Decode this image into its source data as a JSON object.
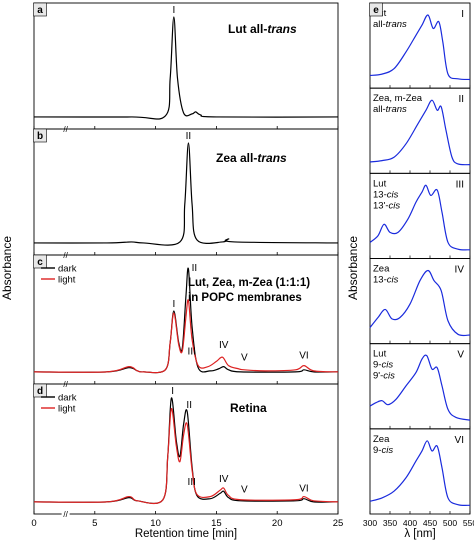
{
  "chart_data": [
    {
      "panel": "a",
      "type": "line",
      "title": "Lut all-trans",
      "title_base": "Lut all-",
      "title_italic": "trans",
      "xlim": [
        0,
        25
      ],
      "peaks": [
        {
          "label": "I",
          "x": 11.5,
          "y": 1.0
        }
      ],
      "series": [
        {
          "color": "#000000",
          "points": [
            [
              0,
              0.02
            ],
            [
              8,
              0.02
            ],
            [
              10.8,
              0.03
            ],
            [
              11.2,
              0.4
            ],
            [
              11.5,
              1.0
            ],
            [
              11.8,
              0.4
            ],
            [
              12.3,
              0.06
            ],
            [
              13.0,
              0.05
            ],
            [
              13.3,
              0.07
            ],
            [
              13.7,
              0.04
            ],
            [
              15,
              0.02
            ],
            [
              25,
              0.02
            ]
          ]
        }
      ]
    },
    {
      "panel": "b",
      "type": "line",
      "title": "Zea all-trans",
      "title_base": "Zea all-",
      "title_italic": "trans",
      "xlim": [
        0,
        25
      ],
      "peaks": [
        {
          "label": "II",
          "x": 12.7,
          "y": 1.0
        }
      ],
      "series": [
        {
          "color": "#000000",
          "points": [
            [
              0,
              0.02
            ],
            [
              6,
              0.02
            ],
            [
              8,
              0.03
            ],
            [
              9,
              0.02
            ],
            [
              12.0,
              0.03
            ],
            [
              12.4,
              0.4
            ],
            [
              12.7,
              1.0
            ],
            [
              13.0,
              0.4
            ],
            [
              13.4,
              0.05
            ],
            [
              15.5,
              0.03
            ],
            [
              16.0,
              0.06
            ],
            [
              16.5,
              0.03
            ],
            [
              25,
              0.02
            ]
          ]
        }
      ]
    },
    {
      "panel": "c",
      "type": "line",
      "title_lines": [
        "Lut, Zea, m-Zea (1:1:1)",
        "in POPC membranes"
      ],
      "xlim": [
        0,
        25
      ],
      "legend": [
        {
          "name": "dark",
          "color": "#000000"
        },
        {
          "name": "light",
          "color": "#dd2222"
        }
      ],
      "peaks": [
        {
          "label": "I",
          "x": 11.5,
          "y": 0.6
        },
        {
          "label": "II",
          "x": 12.7,
          "y": 1.0
        },
        {
          "label": "III",
          "x": 13.3,
          "y": 0.15
        },
        {
          "label": "IV",
          "x": 15.6,
          "y": 0.21
        },
        {
          "label": "V",
          "x": 17.3,
          "y": 0.09
        },
        {
          "label": "VI",
          "x": 22.2,
          "y": 0.11
        }
      ],
      "series": [
        {
          "name": "dark",
          "color": "#000000",
          "points": [
            [
              0,
              0.02
            ],
            [
              6,
              0.02
            ],
            [
              7.8,
              0.06
            ],
            [
              8.5,
              0.03
            ],
            [
              9,
              0.02
            ],
            [
              10.8,
              0.04
            ],
            [
              11.2,
              0.3
            ],
            [
              11.5,
              0.6
            ],
            [
              11.9,
              0.3
            ],
            [
              12.2,
              0.25
            ],
            [
              12.5,
              0.75
            ],
            [
              12.7,
              1.0
            ],
            [
              13.0,
              0.45
            ],
            [
              13.5,
              0.06
            ],
            [
              14.5,
              0.03
            ],
            [
              15.2,
              0.05
            ],
            [
              15.6,
              0.07
            ],
            [
              16.0,
              0.04
            ],
            [
              17.0,
              0.02
            ],
            [
              21.5,
              0.02
            ],
            [
              22.2,
              0.04
            ],
            [
              23.0,
              0.02
            ],
            [
              25,
              0.02
            ]
          ]
        },
        {
          "name": "light",
          "color": "#dd2222",
          "points": [
            [
              0,
              0.02
            ],
            [
              6,
              0.02
            ],
            [
              7.8,
              0.07
            ],
            [
              8.5,
              0.03
            ],
            [
              9,
              0.02
            ],
            [
              10.8,
              0.04
            ],
            [
              11.2,
              0.3
            ],
            [
              11.5,
              0.58
            ],
            [
              11.9,
              0.28
            ],
            [
              12.2,
              0.22
            ],
            [
              12.5,
              0.55
            ],
            [
              12.7,
              0.7
            ],
            [
              13.0,
              0.33
            ],
            [
              13.5,
              0.08
            ],
            [
              14.3,
              0.07
            ],
            [
              15.0,
              0.12
            ],
            [
              15.5,
              0.16
            ],
            [
              16.0,
              0.08
            ],
            [
              16.8,
              0.05
            ],
            [
              17.3,
              0.04
            ],
            [
              19.0,
              0.03
            ],
            [
              21.5,
              0.04
            ],
            [
              22.2,
              0.08
            ],
            [
              23.0,
              0.03
            ],
            [
              25,
              0.02
            ]
          ]
        }
      ]
    },
    {
      "panel": "d",
      "type": "line",
      "title": "Retina",
      "xlim": [
        0,
        25
      ],
      "xticks": [
        0,
        5,
        10,
        15,
        20,
        25
      ],
      "xlabel": "Retention time [min]",
      "legend": [
        {
          "name": "dark",
          "color": "#000000"
        },
        {
          "name": "light",
          "color": "#dd2222"
        }
      ],
      "peaks": [
        {
          "label": "I",
          "x": 11.4,
          "y": 1.0
        },
        {
          "label": "II",
          "x": 12.6,
          "y": 0.87
        },
        {
          "label": "III",
          "x": 13.3,
          "y": 0.14
        },
        {
          "label": "IV",
          "x": 15.6,
          "y": 0.17
        },
        {
          "label": "V",
          "x": 17.3,
          "y": 0.07
        },
        {
          "label": "VI",
          "x": 22.2,
          "y": 0.08
        }
      ],
      "series": [
        {
          "name": "dark",
          "color": "#000000",
          "points": [
            [
              0,
              0.02
            ],
            [
              6,
              0.02
            ],
            [
              7.8,
              0.06
            ],
            [
              8.5,
              0.03
            ],
            [
              10.6,
              0.04
            ],
            [
              11.0,
              0.45
            ],
            [
              11.3,
              1.0
            ],
            [
              11.7,
              0.6
            ],
            [
              12.0,
              0.45
            ],
            [
              12.3,
              0.75
            ],
            [
              12.6,
              0.87
            ],
            [
              13.0,
              0.35
            ],
            [
              13.4,
              0.08
            ],
            [
              14.5,
              0.05
            ],
            [
              15.3,
              0.1
            ],
            [
              15.6,
              0.12
            ],
            [
              16.0,
              0.06
            ],
            [
              17.0,
              0.03
            ],
            [
              21.5,
              0.03
            ],
            [
              22.2,
              0.05
            ],
            [
              23.0,
              0.02
            ],
            [
              25,
              0.02
            ]
          ]
        },
        {
          "name": "light",
          "color": "#dd2222",
          "points": [
            [
              0,
              0.02
            ],
            [
              6,
              0.02
            ],
            [
              7.8,
              0.07
            ],
            [
              8.5,
              0.03
            ],
            [
              10.6,
              0.04
            ],
            [
              11.0,
              0.45
            ],
            [
              11.3,
              0.9
            ],
            [
              11.7,
              0.55
            ],
            [
              12.0,
              0.4
            ],
            [
              12.3,
              0.65
            ],
            [
              12.6,
              0.75
            ],
            [
              13.0,
              0.32
            ],
            [
              13.4,
              0.09
            ],
            [
              14.5,
              0.07
            ],
            [
              15.3,
              0.13
            ],
            [
              15.6,
              0.15
            ],
            [
              16.0,
              0.08
            ],
            [
              17.0,
              0.04
            ],
            [
              21.5,
              0.04
            ],
            [
              22.2,
              0.07
            ],
            [
              23.0,
              0.03
            ],
            [
              25,
              0.02
            ]
          ]
        }
      ]
    },
    {
      "panel": "e",
      "type": "line",
      "xlim": [
        300,
        550
      ],
      "xticks": [
        300,
        350,
        400,
        450,
        500,
        550
      ],
      "xlabel": "λ [nm]",
      "ylabel": "Absorbance",
      "color": "#1a2bdd",
      "spectra": [
        {
          "roman": "I",
          "label_lines": [
            "Lut",
            "all-trans"
          ],
          "points": [
            [
              300,
              0.1
            ],
            [
              330,
              0.12
            ],
            [
              360,
              0.2
            ],
            [
              390,
              0.45
            ],
            [
              415,
              0.7
            ],
            [
              430,
              0.85
            ],
            [
              445,
              1.0
            ],
            [
              458,
              0.8
            ],
            [
              472,
              0.9
            ],
            [
              482,
              0.6
            ],
            [
              495,
              0.12
            ],
            [
              520,
              0.05
            ],
            [
              550,
              0.04
            ]
          ]
        },
        {
          "roman": "II",
          "label_lines": [
            "Zea, m-Zea",
            "all-trans"
          ],
          "points": [
            [
              300,
              0.08
            ],
            [
              330,
              0.1
            ],
            [
              360,
              0.15
            ],
            [
              390,
              0.35
            ],
            [
              420,
              0.65
            ],
            [
              440,
              0.85
            ],
            [
              455,
              1.0
            ],
            [
              468,
              0.85
            ],
            [
              478,
              0.9
            ],
            [
              490,
              0.55
            ],
            [
              505,
              0.15
            ],
            [
              520,
              0.05
            ],
            [
              550,
              0.04
            ]
          ]
        },
        {
          "roman": "III",
          "label_lines": [
            "Lut",
            "13-cis",
            "13'-cis"
          ],
          "points": [
            [
              300,
              0.15
            ],
            [
              320,
              0.25
            ],
            [
              335,
              0.42
            ],
            [
              350,
              0.3
            ],
            [
              370,
              0.3
            ],
            [
              395,
              0.5
            ],
            [
              415,
              0.75
            ],
            [
              430,
              0.9
            ],
            [
              440,
              1.0
            ],
            [
              452,
              0.85
            ],
            [
              468,
              0.93
            ],
            [
              480,
              0.6
            ],
            [
              495,
              0.15
            ],
            [
              520,
              0.05
            ],
            [
              550,
              0.04
            ]
          ]
        },
        {
          "roman": "IV",
          "label_lines": [
            "Zea",
            "13-cis"
          ],
          "points": [
            [
              300,
              0.15
            ],
            [
              320,
              0.3
            ],
            [
              338,
              0.42
            ],
            [
              355,
              0.28
            ],
            [
              375,
              0.3
            ],
            [
              400,
              0.5
            ],
            [
              425,
              0.85
            ],
            [
              445,
              1.0
            ],
            [
              460,
              0.85
            ],
            [
              478,
              0.7
            ],
            [
              495,
              0.25
            ],
            [
              520,
              0.05
            ],
            [
              550,
              0.04
            ]
          ]
        },
        {
          "roman": "V",
          "label_lines": [
            "Lut",
            "9-cis",
            "9'-cis"
          ],
          "points": [
            [
              300,
              0.25
            ],
            [
              315,
              0.3
            ],
            [
              330,
              0.33
            ],
            [
              345,
              0.27
            ],
            [
              365,
              0.35
            ],
            [
              390,
              0.55
            ],
            [
              415,
              0.75
            ],
            [
              430,
              0.95
            ],
            [
              442,
              1.0
            ],
            [
              455,
              0.8
            ],
            [
              468,
              0.82
            ],
            [
              480,
              0.55
            ],
            [
              495,
              0.2
            ],
            [
              515,
              0.08
            ],
            [
              550,
              0.04
            ]
          ]
        },
        {
          "roman": "VI",
          "label_lines": [
            "Zea",
            "9-cis"
          ],
          "points": [
            [
              300,
              0.1
            ],
            [
              330,
              0.15
            ],
            [
              360,
              0.25
            ],
            [
              390,
              0.45
            ],
            [
              415,
              0.7
            ],
            [
              430,
              0.85
            ],
            [
              443,
              1.0
            ],
            [
              455,
              0.85
            ],
            [
              468,
              0.92
            ],
            [
              480,
              0.6
            ],
            [
              495,
              0.15
            ],
            [
              520,
              0.05
            ],
            [
              550,
              0.04
            ]
          ]
        }
      ]
    }
  ],
  "shared": {
    "ylabel": "Absorbance",
    "break_marks": "//"
  }
}
